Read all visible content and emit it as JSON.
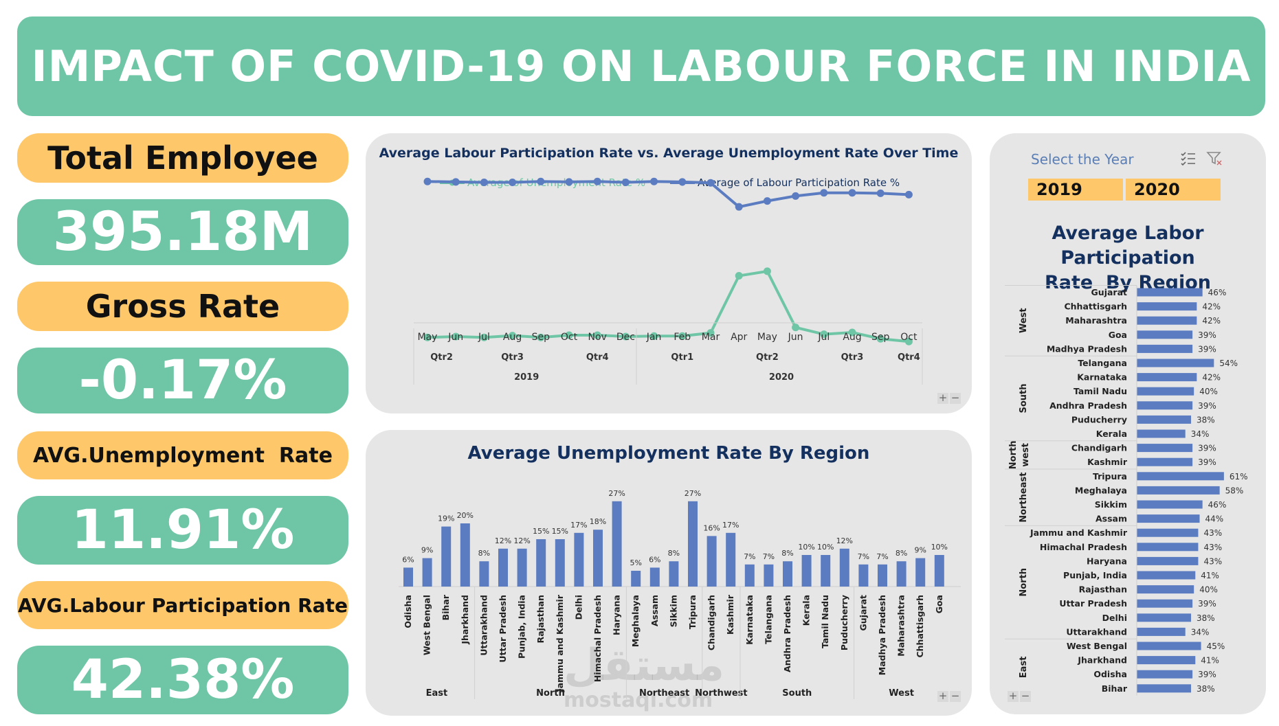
{
  "title": "IMPACT OF COVID-19 ON LABOUR FORCE IN INDIA",
  "kpis": {
    "total_employee_label": "Total Employee",
    "total_employee_value": "395.18M",
    "gross_rate_label": "Gross Rate",
    "gross_rate_value": "-0.17%",
    "avg_unemployment_label": "AVG.Unemployment  Rate",
    "avg_unemployment_value": "11.91%",
    "avg_labour_label": "AVG.Labour Participation Rate",
    "avg_labour_value": "42.38%"
  },
  "slicer": {
    "title": "Select the Year",
    "years": [
      "2019",
      "2020"
    ],
    "icons": [
      "multi-select-icon",
      "clear-filter-icon"
    ]
  },
  "watermark": {
    "arabic": "مستقل",
    "domain": "mostaqi.com"
  },
  "zoom_buttons": {
    "plus": "+",
    "minus": "−"
  },
  "colors": {
    "green": "#6ec6a6",
    "yellow": "#fec86a",
    "blue": "#5b7cc0",
    "navy": "#14305e",
    "panel": "#e6e6e6"
  },
  "chart_data": [
    {
      "type": "line",
      "title": "Average Labour Participation Rate vs. Average Unemployment Rate Over Time",
      "x": [
        "May",
        "Jun",
        "Jul",
        "Aug",
        "Sep",
        "Oct",
        "Nov",
        "Dec",
        "Jan",
        "Feb",
        "Mar",
        "Apr",
        "May",
        "Jun",
        "Jul",
        "Aug",
        "Sep",
        "Oct"
      ],
      "quarters": [
        {
          "label": "Qtr2",
          "from": 0,
          "to": 1
        },
        {
          "label": "Qtr3",
          "from": 2,
          "to": 4
        },
        {
          "label": "Qtr4",
          "from": 5,
          "to": 7
        },
        {
          "label": "Qtr1",
          "from": 8,
          "to": 10
        },
        {
          "label": "Qtr2",
          "from": 11,
          "to": 13
        },
        {
          "label": "Qtr3",
          "from": 14,
          "to": 16
        },
        {
          "label": "Qtr4",
          "from": 17,
          "to": 17
        }
      ],
      "years": [
        {
          "label": "2019",
          "from": 0,
          "to": 7
        },
        {
          "label": "2020",
          "from": 8,
          "to": 17
        }
      ],
      "series": [
        {
          "name": "Average of Unemployment Rate %",
          "color": "#6ec6a6",
          "values": [
            8.9,
            9.1,
            8.9,
            9.3,
            8.9,
            9.4,
            9.4,
            9.1,
            9.2,
            9.2,
            9.9,
            22.5,
            23.5,
            11.1,
            9.6,
            10.0,
            8.6,
            8.0
          ]
        },
        {
          "name": "Average of Labour Participation Rate %",
          "color": "#5b7cc0",
          "values": [
            43.3,
            43.2,
            43.1,
            43.1,
            43.3,
            43.2,
            43.3,
            43.1,
            43.3,
            43.2,
            43.0,
            37.7,
            39.0,
            40.1,
            40.8,
            40.8,
            40.7,
            40.4
          ]
        }
      ]
    },
    {
      "type": "bar",
      "title": "Average Unemployment Rate By Region",
      "groups": [
        {
          "name": "East",
          "categories": [
            "Odisha",
            "West Bengal",
            "Bihar",
            "Jharkhand"
          ],
          "values": [
            6,
            9,
            19,
            20
          ]
        },
        {
          "name": "North",
          "categories": [
            "Uttarakhand",
            "Uttar Pradesh",
            "Punjab, India",
            "Rajasthan",
            "Jammu and Kashmir",
            "Delhi",
            "Himachal Pradesh",
            "Haryana"
          ],
          "values": [
            8,
            12,
            12,
            15,
            15,
            17,
            18,
            27
          ]
        },
        {
          "name": "Northeast",
          "categories": [
            "Meghalaya",
            "Assam",
            "Sikkim",
            "Tripura"
          ],
          "values": [
            5,
            6,
            8,
            27
          ]
        },
        {
          "name": "Northwest",
          "categories": [
            "Chandigarh",
            "Kashmir"
          ],
          "values": [
            16,
            17
          ]
        },
        {
          "name": "South",
          "categories": [
            "Karnataka",
            "Telangana",
            "Andhra Pradesh",
            "Kerala",
            "Tamil Nadu",
            "Puducherry"
          ],
          "values": [
            7,
            7,
            8,
            10,
            10,
            12
          ]
        },
        {
          "name": "West",
          "categories": [
            "Gujarat",
            "Madhya Pradesh",
            "Maharashtra",
            "Chhattisgarh",
            "Goa"
          ],
          "values": [
            7,
            7,
            8,
            9,
            10
          ]
        }
      ],
      "ylim": [
        0,
        30
      ],
      "value_suffix": "%"
    },
    {
      "type": "bar",
      "orientation": "horizontal",
      "title_lines": [
        "Average Labor Participation",
        "Rate  By Region"
      ],
      "groups": [
        {
          "name": "West",
          "categories": [
            "Gujarat",
            "Chhattisgarh",
            "Maharashtra",
            "Goa",
            "Madhya Pradesh"
          ],
          "values": [
            46,
            42,
            42,
            39,
            39
          ]
        },
        {
          "name": "South",
          "categories": [
            "Telangana",
            "Karnataka",
            "Tamil Nadu",
            "Andhra Pradesh",
            "Puducherry",
            "Kerala"
          ],
          "values": [
            54,
            42,
            40,
            39,
            38,
            34
          ]
        },
        {
          "name": "North west",
          "categories": [
            "Chandigarh",
            "Kashmir"
          ],
          "values": [
            39,
            39
          ]
        },
        {
          "name": "Northeast",
          "categories": [
            "Tripura",
            "Meghalaya",
            "Sikkim",
            "Assam"
          ],
          "values": [
            61,
            58,
            46,
            44
          ]
        },
        {
          "name": "North",
          "categories": [
            "Jammu and Kashmir",
            "Himachal Pradesh",
            "Haryana",
            "Punjab, India",
            "Rajasthan",
            "Uttar Pradesh",
            "Delhi",
            "Uttarakhand"
          ],
          "values": [
            43,
            43,
            43,
            41,
            40,
            39,
            38,
            34
          ]
        },
        {
          "name": "East",
          "categories": [
            "West Bengal",
            "Jharkhand",
            "Odisha",
            "Bihar"
          ],
          "values": [
            45,
            41,
            39,
            38
          ]
        }
      ],
      "xlim": [
        0,
        70
      ],
      "value_suffix": "%"
    }
  ]
}
